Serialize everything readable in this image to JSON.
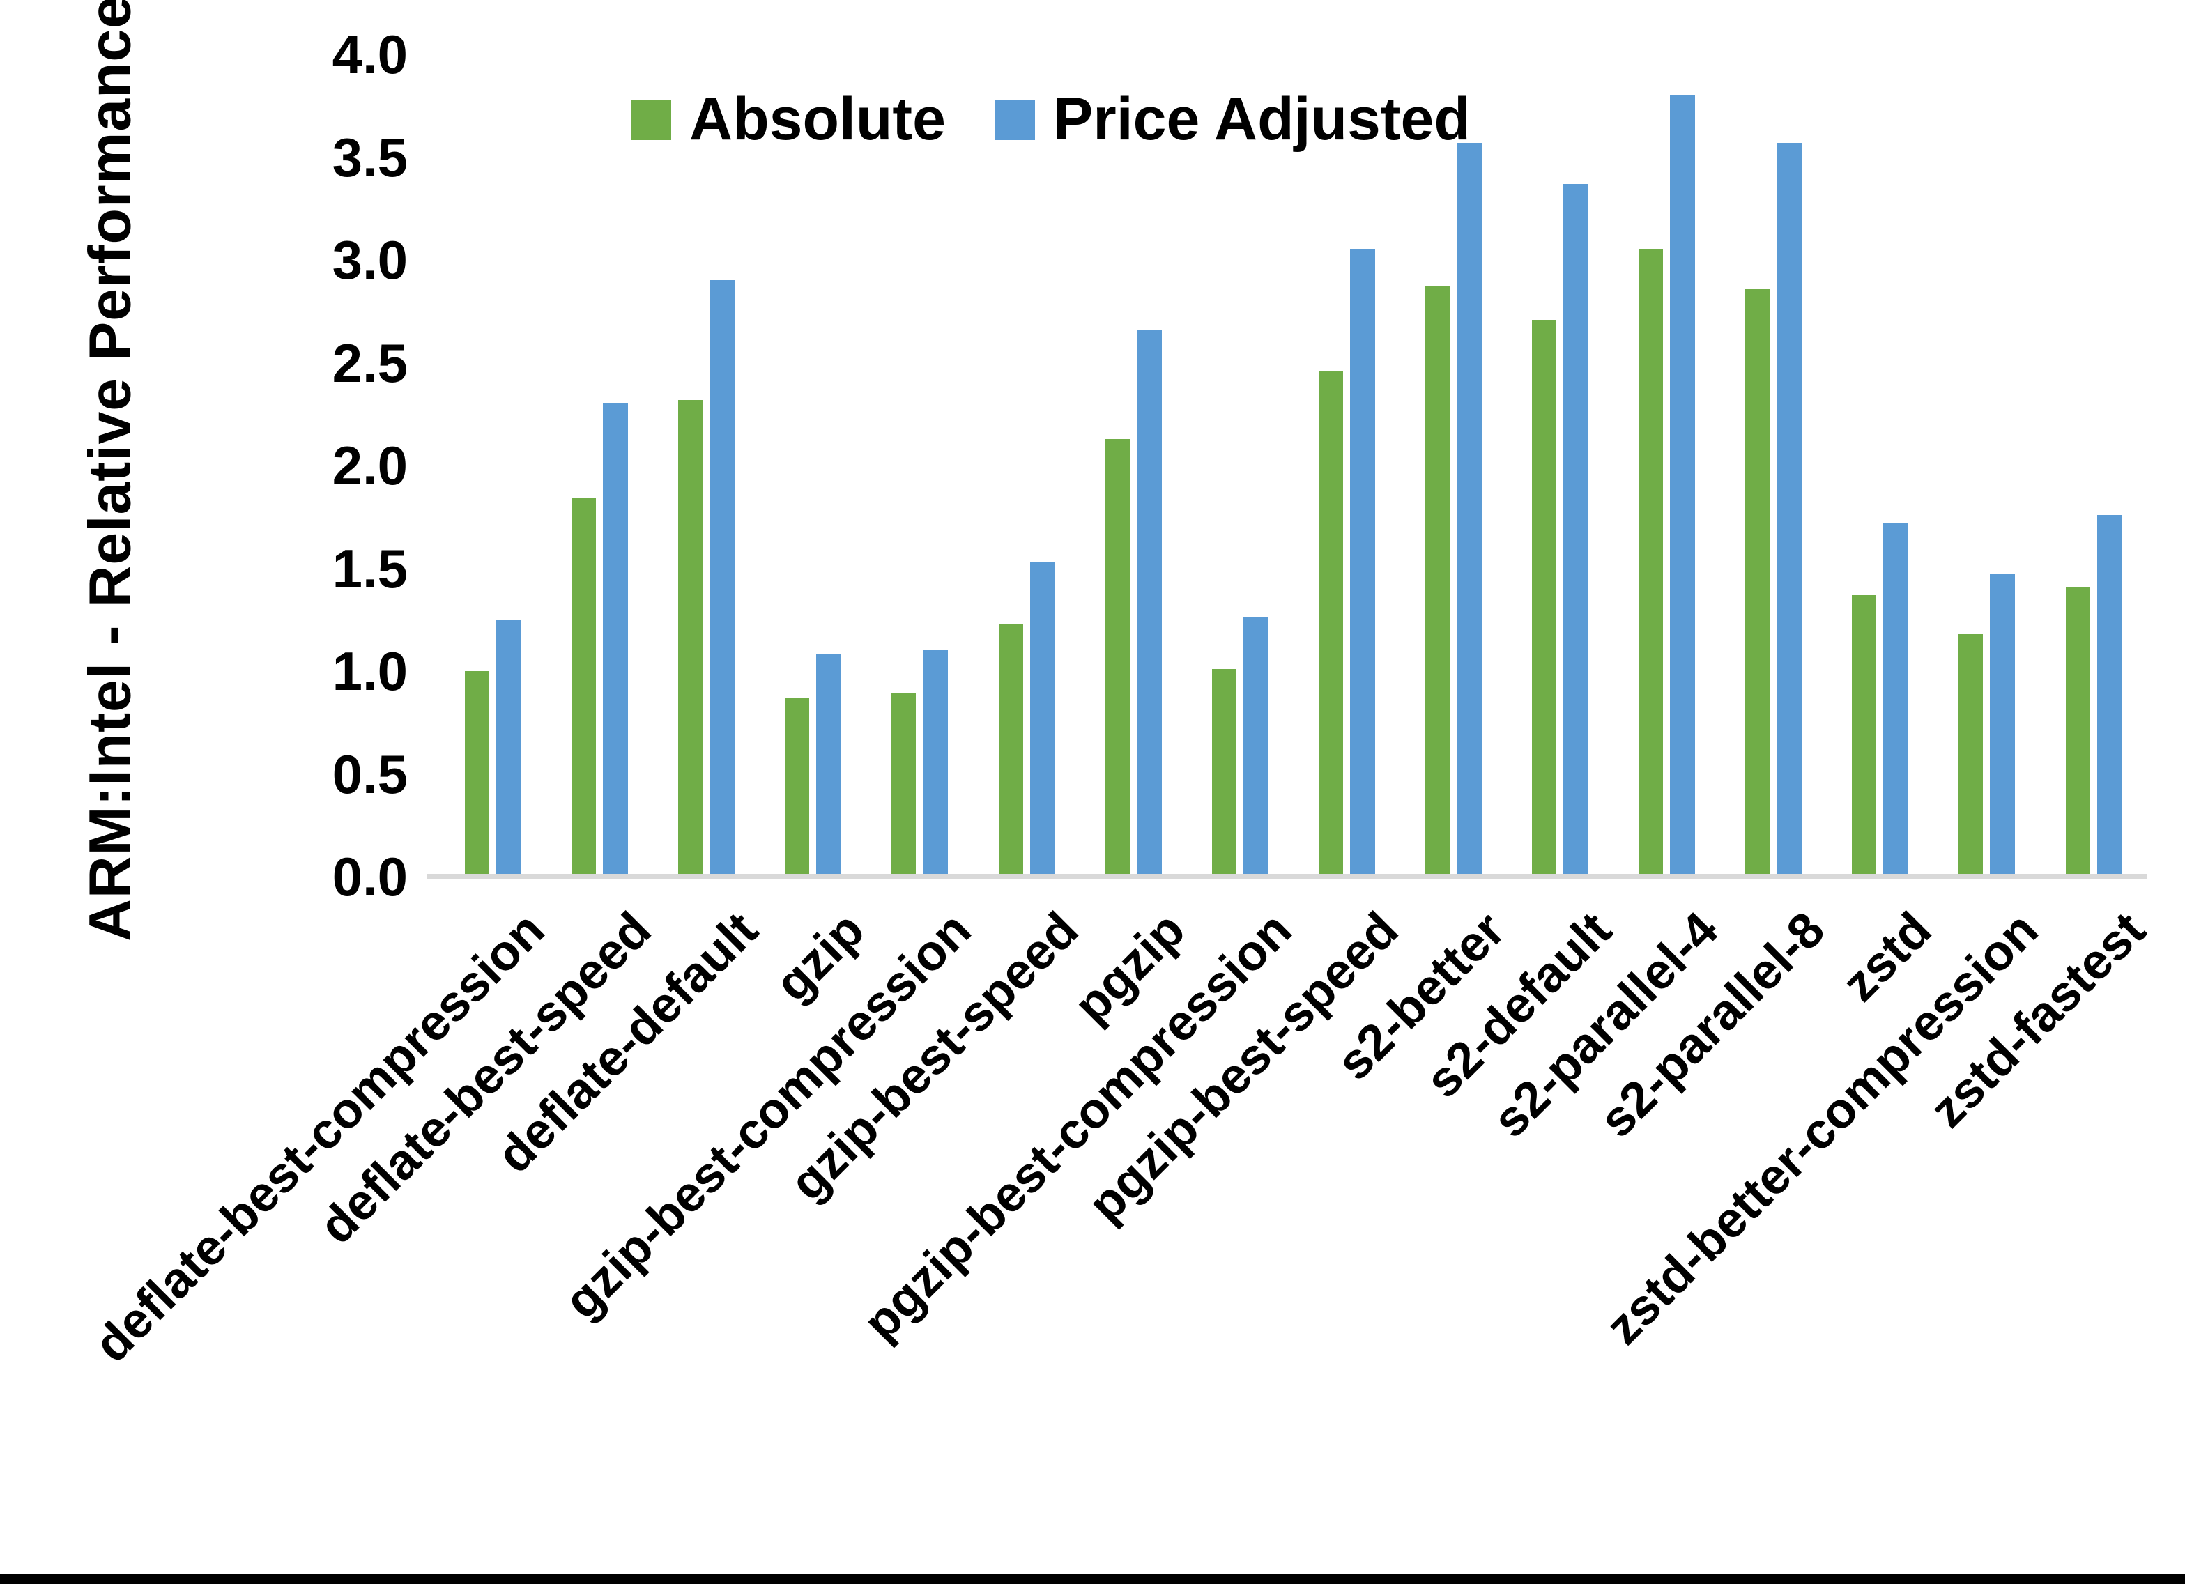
{
  "axis": {
    "y_title": "ARM:Intel - Relative Performance",
    "baseline_color": "#D9D9D9"
  },
  "chart_data": {
    "type": "bar",
    "title": "",
    "xlabel": "",
    "ylabel": "ARM:Intel - Relative Performance",
    "ylim": [
      0.0,
      4.0
    ],
    "ytick_step": 0.5,
    "ytick_labels": [
      "0.0",
      "0.5",
      "1.0",
      "1.5",
      "2.0",
      "2.5",
      "3.0",
      "3.5",
      "4.0"
    ],
    "grid": false,
    "legend_position": "top-center",
    "categories": [
      "deflate-best-compression",
      "deflate-best-speed",
      "deflate-default",
      "gzip",
      "gzip-best-compression",
      "gzip-best-speed",
      "pgzip",
      "pgzip-best-compression",
      "pgzip-best-speed",
      "s2-better",
      "s2-default",
      "s2-parallel-4",
      "s2-parallel-8",
      "zstd",
      "zstd-better-compression",
      "zstd-fastest"
    ],
    "series": [
      {
        "name": "Absolute",
        "color": "#70AD47",
        "values": [
          1.0,
          1.84,
          2.32,
          0.87,
          0.89,
          1.23,
          2.13,
          1.01,
          2.46,
          2.87,
          2.71,
          3.05,
          2.86,
          1.37,
          1.18,
          1.41
        ]
      },
      {
        "name": "Price Adjusted",
        "color": "#5B9BD5",
        "values": [
          1.25,
          2.3,
          2.9,
          1.08,
          1.1,
          1.53,
          2.66,
          1.26,
          3.05,
          3.57,
          3.37,
          3.8,
          3.57,
          1.72,
          1.47,
          1.76
        ]
      }
    ]
  },
  "page": {
    "background": "#ffffff",
    "bottom_bar_color": "#000000"
  }
}
